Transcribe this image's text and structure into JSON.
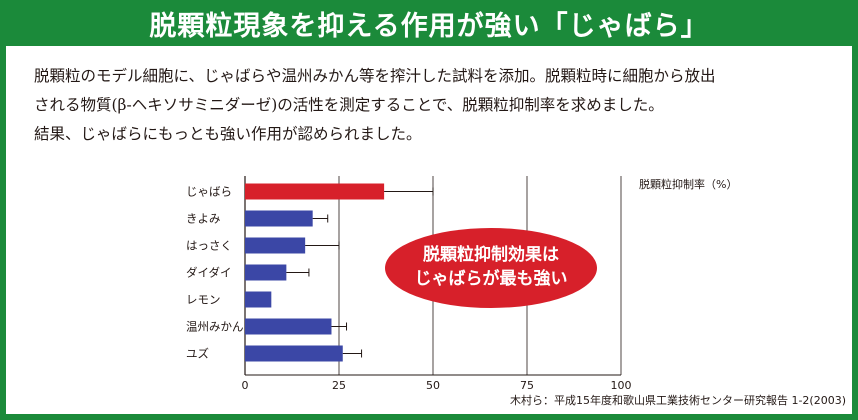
{
  "title": "脱顆粒現象を抑える作用が強い「じゃばら」",
  "description": [
    "脱顆粒のモデル細胞に、じゃばらや温州みかん等を搾汁した試料を添加。脱顆粒時に細胞から放出",
    "される物質(β-ヘキソサミニダーゼ)の活性を測定することで、脱顆粒抑制率を求めました。",
    "結果、じゃばらにもっとも強い作用が認められました。"
  ],
  "callout": {
    "line1": "脱顆粒抑制効果は",
    "line2": "じゃばらが最も強い"
  },
  "source": "木村ら：平成15年度和歌山県工業技術センター研究報告 1-2(2003)",
  "colors": {
    "frame": "#1b8a3a",
    "highlight_bar": "#d7202a",
    "bar": "#3b47a6",
    "callout": "#d7202a"
  },
  "chart_data": {
    "type": "bar",
    "orientation": "horizontal",
    "categories": [
      "じゃばら",
      "きよみ",
      "はっさく",
      "ダイダイ",
      "レモン",
      "温州みかん",
      "ユズ"
    ],
    "values": [
      37,
      18,
      16,
      11,
      7,
      23,
      26
    ],
    "errors": [
      13,
      4,
      9,
      6,
      0,
      4,
      5
    ],
    "highlight_index": 0,
    "ylabel": "脱顆粒抑制率（%）",
    "xlim": [
      0,
      100
    ],
    "xticks": [
      0,
      25,
      50,
      75,
      100
    ],
    "grid": "vertical"
  }
}
